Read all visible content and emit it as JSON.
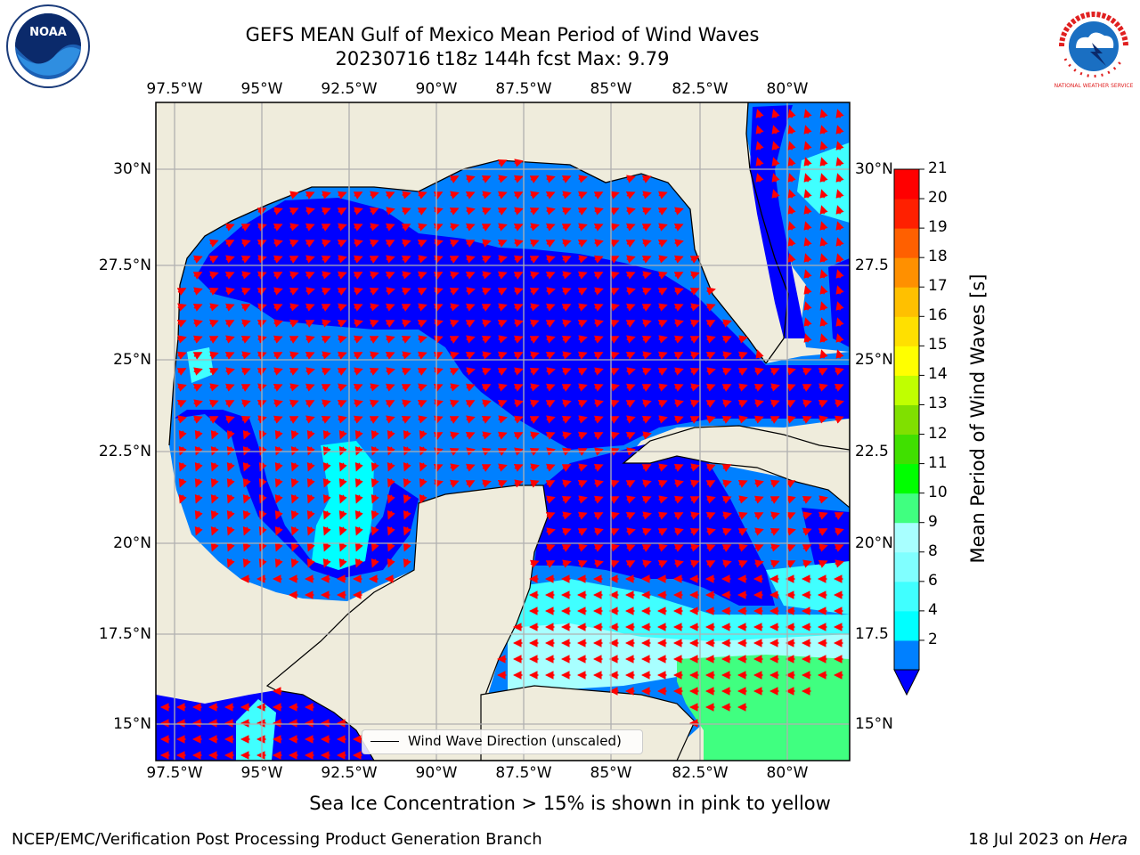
{
  "title": {
    "line1": "GEFS MEAN Gulf of Mexico Mean Period of Wind Waves",
    "line2": "20230716 t18z 144h fcst   Max: 9.79"
  },
  "axes": {
    "lon_ticks": [
      "97.5°W",
      "95°W",
      "92.5°W",
      "90°W",
      "87.5°W",
      "85°W",
      "82.5°W",
      "80°W"
    ],
    "lat_ticks_left": [
      "30°N",
      "27.5°N",
      "25°N",
      "22.5°N",
      "20°N",
      "17.5°N",
      "15°N"
    ],
    "lat_ticks_right": [
      "30°N",
      "27.5",
      "25°N",
      "22.5",
      "20°N",
      "17.5",
      "15°N"
    ]
  },
  "colorbar": {
    "label": "Mean Period of Wind Waves [s]",
    "ticks": [
      "21",
      "20",
      "19",
      "18",
      "17",
      "16",
      "15",
      "14",
      "13",
      "12",
      "11",
      "10",
      "9",
      "8",
      "6",
      "4",
      "2"
    ],
    "colors": [
      "#0000ff",
      "#0080ff",
      "#00ffff",
      "#40ffff",
      "#80ffff",
      "#a8ffff",
      "#40ff80",
      "#00ff00",
      "#40e000",
      "#80e000",
      "#c0ff00",
      "#ffff00",
      "#ffe000",
      "#ffc000",
      "#ff9000",
      "#ff6000",
      "#ff2000",
      "#ff0000"
    ],
    "extend": "min"
  },
  "legend": {
    "label": "Wind Wave Direction (unscaled)"
  },
  "subtitle": "Sea Ice Concentration > 15% is shown in pink to yellow",
  "footer": {
    "left": "NCEP/EMC/Verification Post Processing Product Generation Branch",
    "right_date": "18 Jul 2023 on ",
    "right_host": "Hera"
  },
  "logos": {
    "noaa": "NOAA",
    "nws": "NATIONAL WEATHER SERVICE"
  },
  "colors": {
    "land": "#efecdc",
    "arrow": "#ff0000",
    "grid": "#b0b0b0"
  }
}
